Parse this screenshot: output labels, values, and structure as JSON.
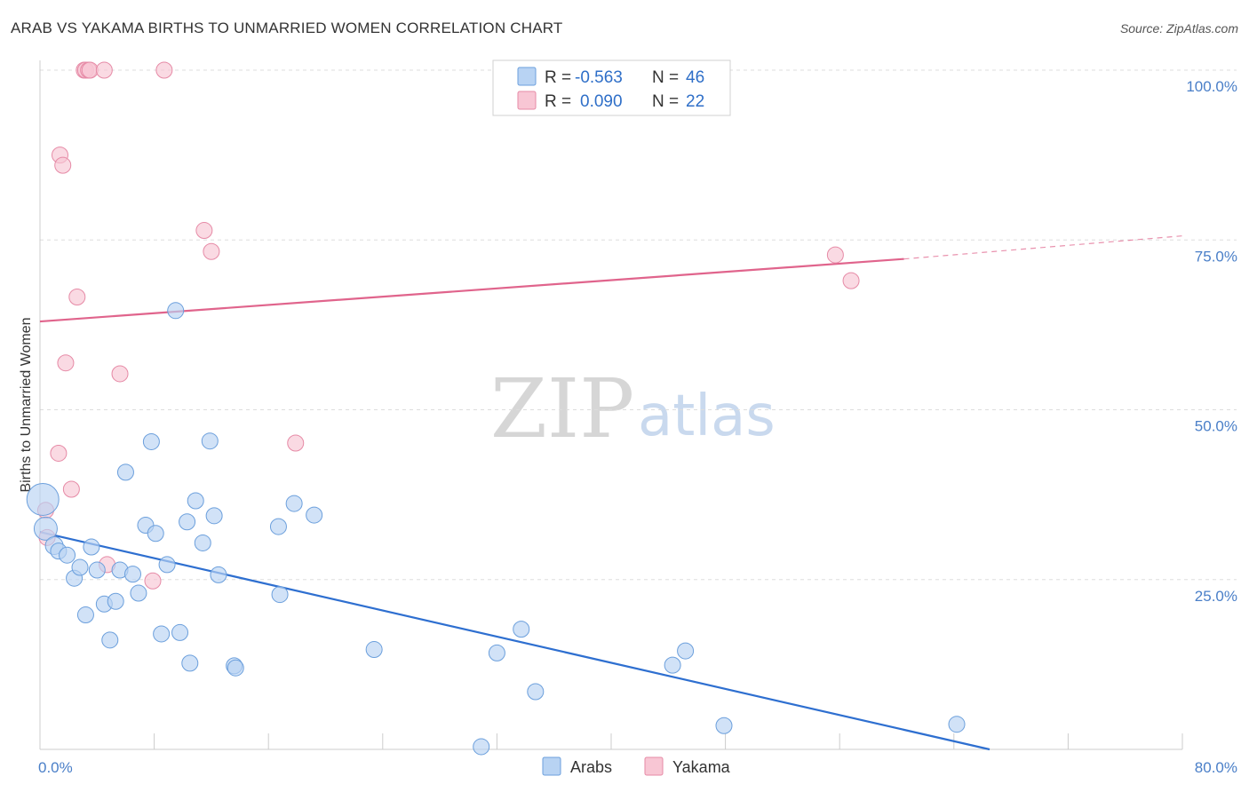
{
  "header": {
    "title": "ARAB VS YAKAMA BIRTHS TO UNMARRIED WOMEN CORRELATION CHART",
    "source": "Source: ZipAtlas.com"
  },
  "watermark": {
    "zip": "ZIP",
    "atlas": "atlas"
  },
  "colors": {
    "arabs_fill": "#b8d3f3",
    "arabs_stroke": "#6b9fdc",
    "arabs_line": "#2e6fd0",
    "yakama_fill": "#f8c6d4",
    "yakama_stroke": "#e68aa6",
    "yakama_line": "#e0648c",
    "tick_text": "#4a7fc8",
    "grid": "#dddddd"
  },
  "legend": {
    "rows": [
      {
        "r_label": "R =",
        "r_value": "-0.563",
        "n_label": "N =",
        "n_value": "46"
      },
      {
        "r_label": "R =",
        "r_value": "0.090",
        "n_label": "N =",
        "n_value": "22"
      }
    ]
  },
  "chart_data": {
    "type": "scatter",
    "title": "ARAB VS YAKAMA BIRTHS TO UNMARRIED WOMEN CORRELATION CHART",
    "xlabel": "",
    "ylabel": "Births to Unmarried Women",
    "xlim": [
      0,
      80
    ],
    "ylim": [
      0,
      100
    ],
    "x_tick_labels": [
      "0.0%",
      "80.0%"
    ],
    "y_ticks": [
      25,
      50,
      75,
      100
    ],
    "y_tick_labels": [
      "25.0%",
      "50.0%",
      "75.0%",
      "100.0%"
    ],
    "grid": true,
    "legend_position": "top-center",
    "series": [
      {
        "name": "Arabs",
        "r": -0.563,
        "n": 46,
        "trend": {
          "x0": 0,
          "y0": 32.0,
          "x1": 66.5,
          "y1": 0
        },
        "points": [
          [
            0.2,
            36.8,
            18
          ],
          [
            0.4,
            32.5,
            13
          ],
          [
            1.0,
            30.0,
            10
          ],
          [
            1.3,
            29.2,
            9
          ],
          [
            1.9,
            28.6,
            9
          ],
          [
            2.4,
            25.2,
            9
          ],
          [
            2.8,
            26.8,
            9
          ],
          [
            3.2,
            19.8,
            9
          ],
          [
            3.6,
            29.8,
            9
          ],
          [
            4.0,
            26.4,
            9
          ],
          [
            4.5,
            21.4,
            9
          ],
          [
            4.9,
            16.1,
            9
          ],
          [
            5.3,
            21.8,
            9
          ],
          [
            5.6,
            26.4,
            9
          ],
          [
            6.0,
            40.8,
            9
          ],
          [
            6.5,
            25.8,
            9
          ],
          [
            6.9,
            23.0,
            9
          ],
          [
            7.4,
            33.0,
            9
          ],
          [
            7.8,
            45.3,
            9
          ],
          [
            8.1,
            31.8,
            9
          ],
          [
            8.5,
            17.0,
            9
          ],
          [
            8.9,
            27.2,
            9
          ],
          [
            9.5,
            64.6,
            9
          ],
          [
            9.8,
            17.2,
            9
          ],
          [
            10.3,
            33.5,
            9
          ],
          [
            10.5,
            12.7,
            9
          ],
          [
            10.9,
            36.6,
            9
          ],
          [
            11.4,
            30.4,
            9
          ],
          [
            11.9,
            45.4,
            9
          ],
          [
            12.2,
            34.4,
            9
          ],
          [
            12.5,
            25.7,
            9
          ],
          [
            13.6,
            12.3,
            9
          ],
          [
            13.7,
            12.0,
            9
          ],
          [
            16.7,
            32.8,
            9
          ],
          [
            16.8,
            22.8,
            9
          ],
          [
            17.8,
            36.2,
            9
          ],
          [
            19.2,
            34.5,
            9
          ],
          [
            23.4,
            14.7,
            9
          ],
          [
            30.9,
            0.4,
            9
          ],
          [
            32.0,
            14.2,
            9
          ],
          [
            33.7,
            17.7,
            9
          ],
          [
            34.7,
            8.5,
            9
          ],
          [
            44.3,
            12.4,
            9
          ],
          [
            45.2,
            14.5,
            9
          ],
          [
            47.9,
            3.5,
            9
          ],
          [
            64.2,
            3.7,
            9
          ]
        ]
      },
      {
        "name": "Yakama",
        "r": 0.09,
        "n": 22,
        "trend": {
          "x0": 0,
          "y0": 63.0,
          "x1": 60.5,
          "y1": 72.2,
          "dash_x1": 80,
          "dash_y1": 75.6
        },
        "points": [
          [
            0.4,
            35.2,
            9
          ],
          [
            0.5,
            31.2,
            9
          ],
          [
            1.3,
            43.6,
            9
          ],
          [
            1.4,
            87.5,
            9
          ],
          [
            1.6,
            86.0,
            9
          ],
          [
            1.8,
            56.9,
            9
          ],
          [
            2.2,
            38.3,
            9
          ],
          [
            2.6,
            66.6,
            9
          ],
          [
            3.1,
            100.0,
            9
          ],
          [
            3.2,
            100.0,
            9
          ],
          [
            3.4,
            100.0,
            9
          ],
          [
            3.5,
            100.0,
            9
          ],
          [
            4.5,
            100.0,
            9
          ],
          [
            4.7,
            27.2,
            9
          ],
          [
            5.6,
            55.3,
            9
          ],
          [
            7.9,
            24.8,
            9
          ],
          [
            8.7,
            100.0,
            9
          ],
          [
            11.5,
            76.4,
            9
          ],
          [
            12.0,
            73.3,
            9
          ],
          [
            17.9,
            45.1,
            9
          ],
          [
            55.7,
            72.8,
            9
          ],
          [
            56.8,
            69.0,
            9
          ]
        ]
      }
    ]
  }
}
